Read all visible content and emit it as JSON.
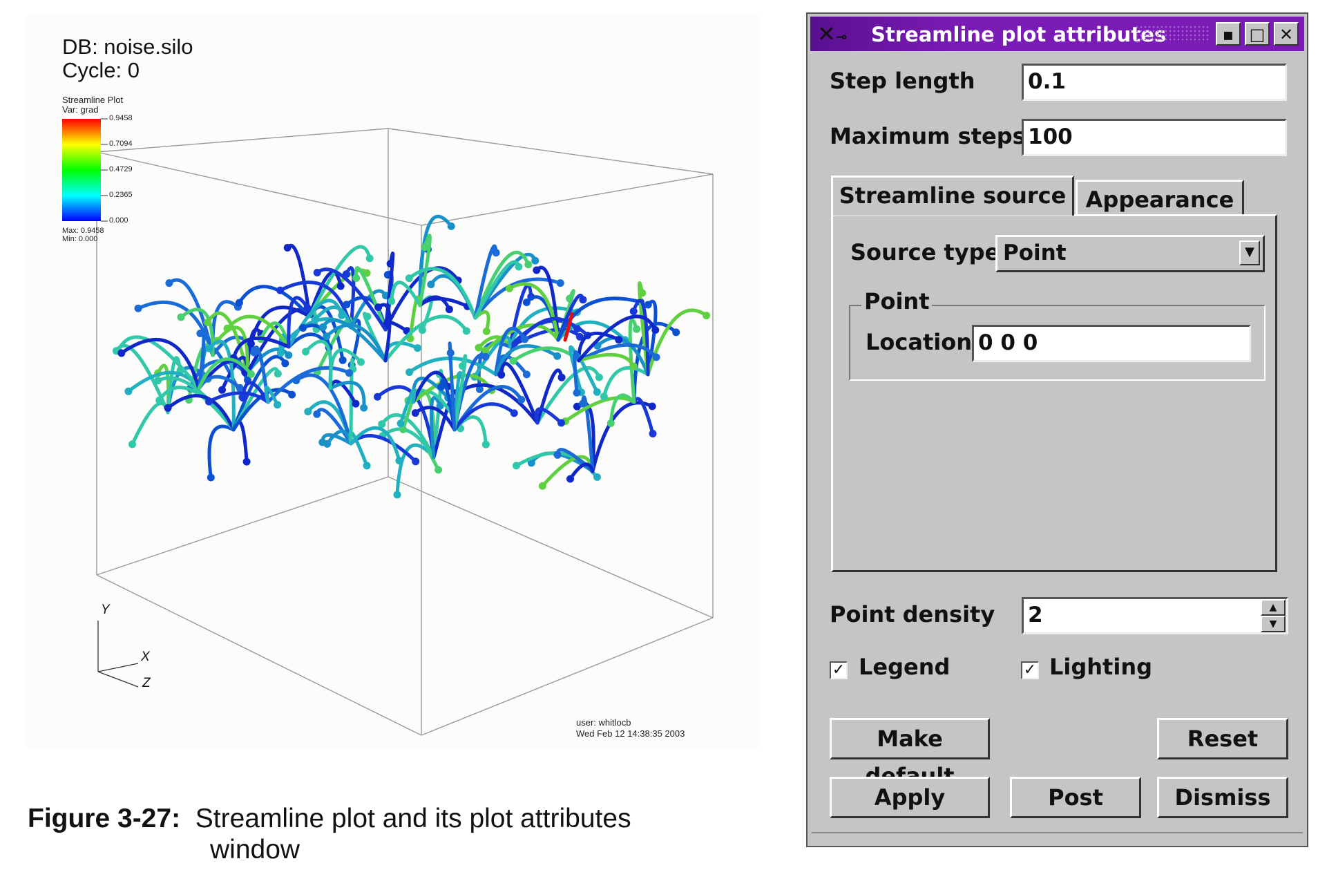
{
  "viz": {
    "db_line": "DB: noise.silo",
    "cycle_line": "Cycle: 0",
    "legend": {
      "title": "Streamline Plot",
      "var": "Var:  grad",
      "ticks": [
        "0.9458",
        "0.7094",
        "0.4729",
        "0.2365",
        "0.000"
      ],
      "max": "Max: 0.9458",
      "min": "Min: 0.000",
      "colors": [
        "#ff0000",
        "#ffff00",
        "#00ff00",
        "#00ffff",
        "#0000ff"
      ]
    },
    "axes": {
      "y": "Y",
      "x": "X",
      "z": "Z"
    },
    "user": "user: whitlocb",
    "date": "Wed Feb 12 14:38:35 2003"
  },
  "caption": {
    "label": "Figure 3-27:",
    "text": "Streamline plot and its plot attributes",
    "text2": "window"
  },
  "window": {
    "title": "Streamline plot attributes",
    "titlebar_color": "#7a1bb5",
    "step_length_label": "Step length",
    "step_length_value": "0.1",
    "max_steps_label": "Maximum steps",
    "max_steps_value": "100",
    "tabs": [
      "Streamline source",
      "Appearance"
    ],
    "source_type_label": "Source type",
    "source_type_value": "Point",
    "group_title": "Point",
    "location_label": "Location",
    "location_value": "0 0 0",
    "point_density_label": "Point density",
    "point_density_value": "2",
    "legend_label": "Legend",
    "lighting_label": "Lighting",
    "buttons": {
      "make_default": "Make default",
      "reset": "Reset",
      "apply": "Apply",
      "post": "Post",
      "dismiss": "Dismiss"
    },
    "icons": [
      "x-window-logo-icon",
      "pin-icon",
      "minimize-icon",
      "maximize-icon",
      "close-icon",
      "dropdown-arrow-icon",
      "spin-up-icon",
      "spin-down-icon",
      "checkmark-icon"
    ]
  }
}
